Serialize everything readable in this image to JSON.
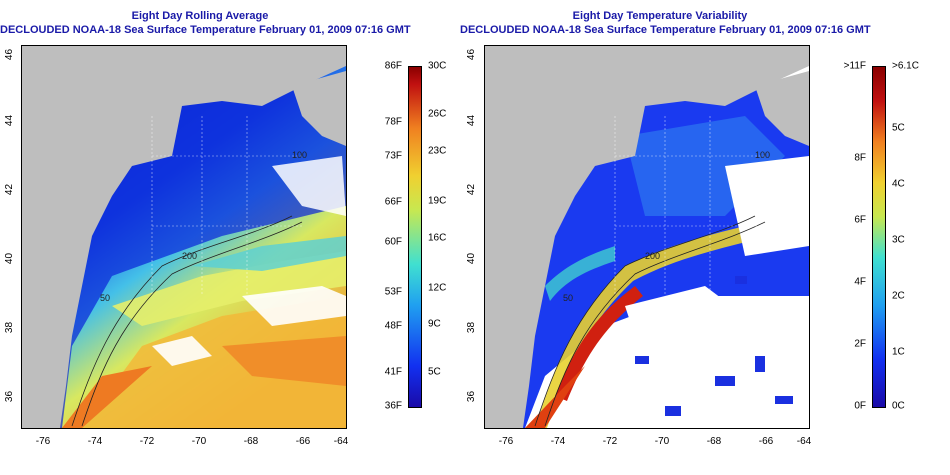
{
  "left": {
    "title_line1": "Eight Day Rolling Average",
    "title_line2": "DECLOUDED NOAA-18 Sea Surface Temperature February 01, 2009 07:16 GMT",
    "colorbar_left": [
      "86F",
      "78F",
      "73F",
      "66F",
      "60F",
      "53F",
      "48F",
      "41F",
      "36F"
    ],
    "colorbar_right": [
      "30C",
      "26C",
      "23C",
      "19C",
      "16C",
      "12C",
      "9C",
      "5C"
    ],
    "contour_labels": [
      "100",
      "200",
      "50"
    ]
  },
  "right": {
    "title_line1": "Eight Day Temperature Variability",
    "title_line2": "DECLOUDED NOAA-18 Sea Surface Temperature February 01, 2009 07:16 GMT",
    "colorbar_left": [
      ">11F",
      "8F",
      "6F",
      "4F",
      "2F",
      "0F"
    ],
    "colorbar_right": [
      ">6.1C",
      "5C",
      "4C",
      "3C",
      "2C",
      "1C",
      "0C"
    ],
    "contour_labels": [
      "100",
      "200",
      "50"
    ]
  },
  "lat_ticks": [
    "46",
    "44",
    "42",
    "40",
    "38",
    "36"
  ],
  "lon_ticks": [
    "-76",
    "-74",
    "-72",
    "-70",
    "-68",
    "-66",
    "-64"
  ],
  "colors": {
    "title": "#1a1aa8",
    "land": "#bebebe",
    "cloud": "#ffffff"
  }
}
